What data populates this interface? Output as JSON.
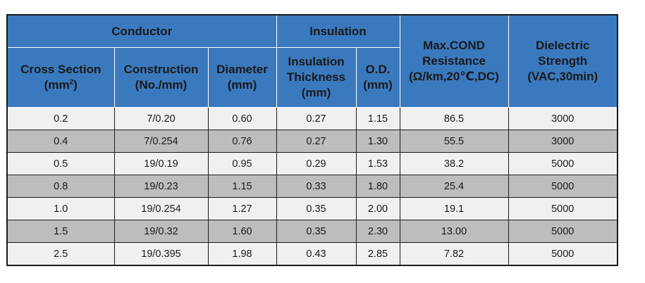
{
  "header": {
    "groups": {
      "conductor": "Conductor",
      "insulation": "Insulation",
      "max_cond_resistance": [
        "Max.COND",
        "Resistance",
        "(Ω/km,20℃,DC)"
      ],
      "dielectric_strength": [
        "Dielectric",
        "Strength",
        "(VAC,30min)"
      ]
    },
    "columns": {
      "cross_section": {
        "line1": "Cross Section",
        "unit_prefix": "(mm",
        "unit_sup": "2",
        "unit_suffix": ")"
      },
      "construction": [
        "Construction",
        "(No./mm)"
      ],
      "diameter": [
        "Diameter",
        "(mm)"
      ],
      "insulation_thickness": [
        "Insulation",
        "Thickness",
        "(mm)"
      ],
      "od": [
        "O.D.",
        "(mm)"
      ]
    }
  },
  "rows": [
    [
      "0.2",
      "7/0.20",
      "0.60",
      "0.27",
      "1.15",
      "86.5",
      "3000"
    ],
    [
      "0.4",
      "7/0.254",
      "0.76",
      "0.27",
      "1.30",
      "55.5",
      "3000"
    ],
    [
      "0.5",
      "19/0.19",
      "0.95",
      "0.29",
      "1.53",
      "38.2",
      "5000"
    ],
    [
      "0.8",
      "19/0.23",
      "1.15",
      "0.33",
      "1.80",
      "25.4",
      "5000"
    ],
    [
      "1.0",
      "19/0.254",
      "1.27",
      "0.35",
      "2.00",
      "19.1",
      "5000"
    ],
    [
      "1.5",
      "19/0.32",
      "1.60",
      "0.35",
      "2.30",
      "13.00",
      "5000"
    ],
    [
      "2.5",
      "19/0.395",
      "1.98",
      "0.43",
      "2.85",
      "7.82",
      "5000"
    ]
  ],
  "colors": {
    "header_bg": "#3a79be",
    "row_light": "#f0f0f0",
    "row_dark": "#bdbdbd",
    "border": "#1a1a1a"
  }
}
